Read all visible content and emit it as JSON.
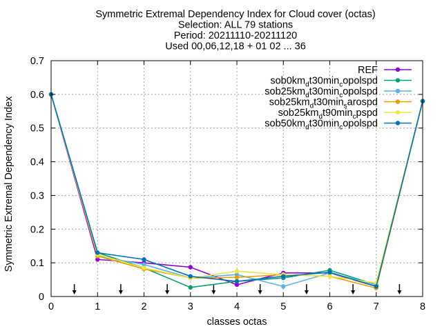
{
  "chart_data": {
    "type": "line",
    "title_lines": [
      "Symmetric Extremal Dependency Index  for Cloud cover (octas)",
      "Selection: ALL     79 stations",
      "Period: 20211110-20211120",
      "Used 00,06,12,18 + 01 02 ... 36"
    ],
    "xlabel": "classes octas",
    "ylabel": "Symmetric Extremal Dependency Index",
    "xlim": [
      0,
      8
    ],
    "ylim": [
      0,
      0.7
    ],
    "xticks": [
      0,
      1,
      2,
      3,
      4,
      5,
      6,
      7,
      8
    ],
    "yticks": [
      0,
      0.1,
      0.2,
      0.3,
      0.4,
      0.5,
      0.6,
      0.7
    ],
    "ytick_labels": [
      "0",
      "0.1",
      "0.2",
      "0.3",
      "0.4",
      "0.5",
      "0.6",
      "0.7"
    ],
    "grid": true,
    "legend_position": "top-right",
    "x": [
      0,
      1,
      2,
      3,
      4,
      5,
      6,
      7,
      8
    ],
    "series": [
      {
        "name": "REF",
        "name_parts": [
          {
            "t": "REF",
            "s": ""
          }
        ],
        "color": "#9400d3",
        "marker": "filled-circle",
        "values": [
          0.6,
          0.11,
          0.1,
          0.087,
          0.035,
          0.07,
          0.07,
          0.03,
          0.58
        ]
      },
      {
        "name": "sob0km_dt30min_copolspd",
        "name_parts": [
          {
            "t": "sob0km",
            "s": ""
          },
          {
            "t": "d",
            "s": "sub"
          },
          {
            "t": "t30min",
            "s": ""
          },
          {
            "t": "c",
            "s": "sub"
          },
          {
            "t": "opolspd",
            "s": ""
          }
        ],
        "color": "#009e73",
        "marker": "filled-circle",
        "values": [
          0.6,
          0.13,
          0.085,
          0.027,
          0.045,
          0.055,
          0.078,
          0.035,
          0.58
        ]
      },
      {
        "name": "sob25km_dt30min_copolspd",
        "name_parts": [
          {
            "t": "sob25km",
            "s": ""
          },
          {
            "t": "d",
            "s": "sub"
          },
          {
            "t": "t30min",
            "s": ""
          },
          {
            "t": "c",
            "s": "sub"
          },
          {
            "t": "opolspd",
            "s": ""
          }
        ],
        "color": "#56b4e9",
        "marker": "filled-circle",
        "values": [
          0.6,
          0.12,
          0.095,
          0.055,
          0.065,
          0.03,
          0.07,
          0.035,
          0.58
        ]
      },
      {
        "name": "sob25km_dt30min_sarospd",
        "name_parts": [
          {
            "t": "sob25km",
            "s": ""
          },
          {
            "t": "d",
            "s": "sub"
          },
          {
            "t": "t30min",
            "s": ""
          },
          {
            "t": "s",
            "s": "sub"
          },
          {
            "t": "arospd",
            "s": ""
          }
        ],
        "color": "#e69f00",
        "marker": "filled-circle",
        "values": [
          0.6,
          0.12,
          0.082,
          0.055,
          0.057,
          0.065,
          0.06,
          0.025,
          0.58
        ]
      },
      {
        "name": "sob25km_dt90min_cpspd",
        "name_parts": [
          {
            "t": "sob25km",
            "s": ""
          },
          {
            "t": "d",
            "s": "sub"
          },
          {
            "t": "t90min",
            "s": ""
          },
          {
            "t": "c",
            "s": "sub"
          },
          {
            "t": "pspd",
            "s": ""
          }
        ],
        "color": "#f0e442",
        "marker": "filled-circle",
        "values": [
          0.6,
          0.125,
          0.085,
          0.055,
          0.075,
          0.065,
          0.06,
          0.04,
          0.58
        ]
      },
      {
        "name": "sob50km_dt30min_copolspd",
        "name_parts": [
          {
            "t": "sob50km",
            "s": ""
          },
          {
            "t": "d",
            "s": "sub"
          },
          {
            "t": "t30min",
            "s": ""
          },
          {
            "t": "c",
            "s": "sub"
          },
          {
            "t": "opolspd",
            "s": ""
          }
        ],
        "color": "#0072b2",
        "marker": "filled-circle",
        "values": [
          0.6,
          0.13,
          0.11,
          0.06,
          0.045,
          0.06,
          0.072,
          0.03,
          0.58
        ]
      }
    ],
    "arrow_markers_x": [
      0.5,
      1.5,
      2.5,
      3.5,
      4.5,
      5.5,
      6.5,
      7.5
    ]
  }
}
